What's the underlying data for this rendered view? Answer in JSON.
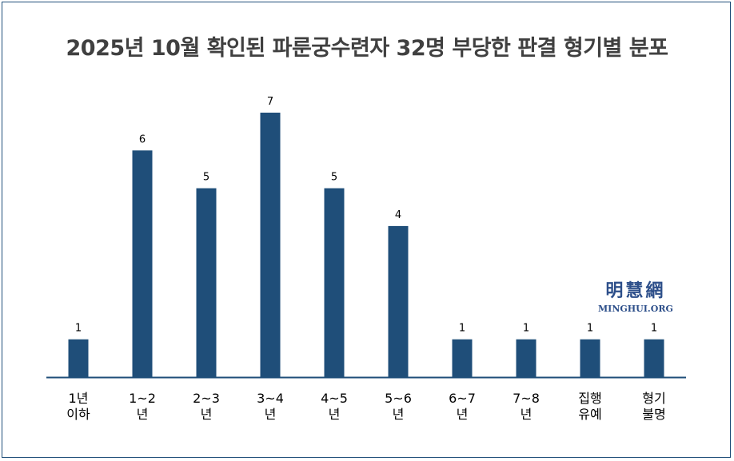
{
  "chart_data": {
    "type": "bar",
    "title": "2025년 10월 확인된 파룬궁수련자 32명 부당한 판결 형기별 분포",
    "categories": [
      [
        "1년",
        "이하"
      ],
      [
        "1~2",
        "년"
      ],
      [
        "2~3",
        "년"
      ],
      [
        "3~4",
        "년"
      ],
      [
        "4~5",
        "년"
      ],
      [
        "5~6",
        "년"
      ],
      [
        "6~7",
        "년"
      ],
      [
        "7~8",
        "년"
      ],
      [
        "집행",
        "유예"
      ],
      [
        "형기",
        "불명"
      ]
    ],
    "values": [
      1,
      6,
      5,
      7,
      5,
      4,
      1,
      1,
      1,
      1
    ],
    "ylim": [
      0,
      7
    ],
    "grid": false,
    "legend": "none",
    "bar_color": "#1f4e79",
    "axis_color": "#1f4e79"
  },
  "watermark": {
    "chinese": "明慧網",
    "english": "MINGHUI.ORG"
  }
}
